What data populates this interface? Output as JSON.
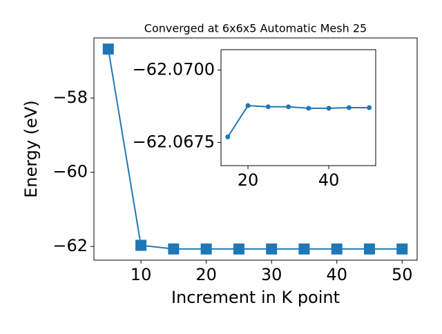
{
  "chart_data": [
    {
      "type": "line",
      "title": "Converged at 6x6x5 Automatic Mesh 25",
      "x_label": "Increment in K point",
      "y_label": "Energy (eV)",
      "x": [
        5,
        10,
        15,
        20,
        25,
        30,
        35,
        40,
        45,
        50
      ],
      "series": [
        {
          "color": "#1f77b4",
          "marker": "square",
          "values": [
            -56.68,
            -61.97,
            -62.06769,
            -62.06877,
            -62.06873,
            -62.06873,
            -62.06868,
            -62.06868,
            -62.0687,
            -62.0687
          ]
        }
      ],
      "xlim": [
        2.8,
        52.3
      ],
      "ylim": [
        -62.37,
        -56.38
      ],
      "xticks": [
        10,
        20,
        30,
        40,
        50
      ],
      "yticks": [
        {
          "value": -58,
          "label": "−58"
        },
        {
          "value": -60,
          "label": "−60"
        },
        {
          "value": -62,
          "label": "−62"
        }
      ]
    },
    {
      "type": "line",
      "x": [
        15,
        20,
        25,
        30,
        35,
        40,
        45,
        50
      ],
      "series": [
        {
          "color": "#1f77b4",
          "marker": "circle",
          "values": [
            -62.06769,
            -62.06877,
            -62.06873,
            -62.06873,
            -62.06868,
            -62.06868,
            -62.0687,
            -62.0687
          ]
        }
      ],
      "xlim": [
        13.33,
        51.6
      ],
      "ylim": [
        -62.0667,
        -62.0707
      ],
      "xticks": [
        20,
        40
      ],
      "yticks": [
        {
          "value": -62.07,
          "label": "−62.0700"
        },
        {
          "value": -62.0675,
          "label": "−62.0675"
        }
      ]
    }
  ]
}
